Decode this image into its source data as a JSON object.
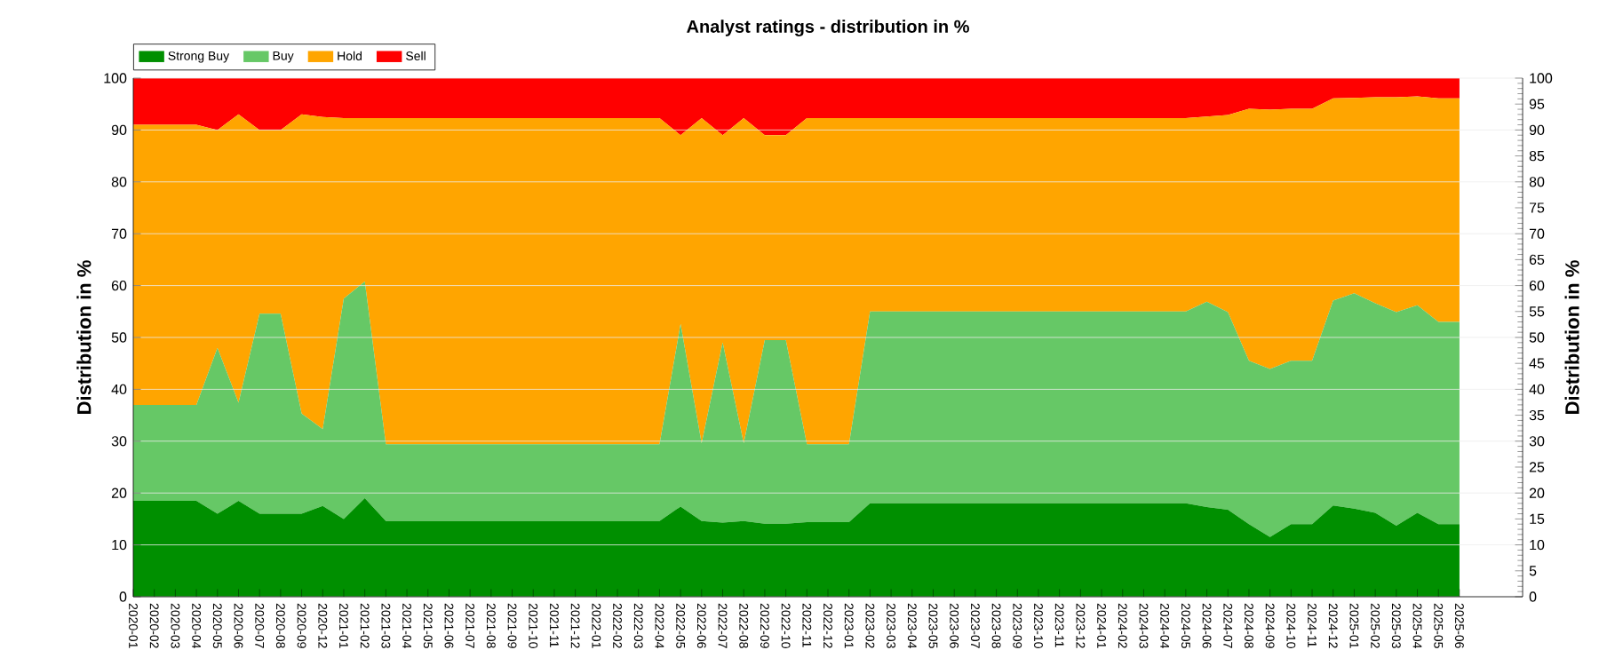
{
  "chart_data": {
    "type": "area",
    "title": "Analyst ratings - distribution in %",
    "ylabel": "Distribution in %",
    "y2label": "Distribution in %",
    "stacked": true,
    "grid": "y",
    "legend": "top left",
    "categories": [
      "2020-01",
      "2020-02",
      "2020-03",
      "2020-04",
      "2020-05",
      "2020-06",
      "2020-07",
      "2020-08",
      "2020-09",
      "2020-12",
      "2021-01",
      "2021-02",
      "2021-03",
      "2021-04",
      "2021-05",
      "2021-06",
      "2021-07",
      "2021-08",
      "2021-09",
      "2021-10",
      "2021-11",
      "2021-12",
      "2022-01",
      "2022-02",
      "2022-03",
      "2022-04",
      "2022-05",
      "2022-06",
      "2022-07",
      "2022-08",
      "2022-09",
      "2022-10",
      "2022-11",
      "2022-12",
      "2023-01",
      "2023-02",
      "2023-03",
      "2023-04",
      "2023-05",
      "2023-06",
      "2023-07",
      "2023-08",
      "2023-09",
      "2023-10",
      "2023-11",
      "2023-12",
      "2024-01",
      "2024-02",
      "2024-03",
      "2024-04",
      "2024-05",
      "2024-06",
      "2024-07",
      "2024-08",
      "2024-09",
      "2024-10",
      "2024-11",
      "2024-12",
      "2025-01",
      "2025-02",
      "2025-03",
      "2025-04",
      "2025-05",
      "2025-06"
    ],
    "series": [
      {
        "name": "Strong Buy",
        "color": "#008f00",
        "values": [
          18.5,
          18.5,
          18.5,
          18.5,
          16,
          18.5,
          16,
          16,
          16,
          17.5,
          15,
          19,
          14.6,
          14.6,
          14.6,
          14.6,
          14.6,
          14.6,
          14.6,
          14.6,
          14.6,
          14.6,
          14.6,
          14.6,
          14.6,
          14.6,
          17.4,
          14.6,
          14.3,
          14.6,
          14.1,
          14.1,
          14.4,
          14.4,
          14.4,
          18,
          18,
          18,
          18,
          18,
          18,
          18,
          18,
          18,
          18,
          18,
          18,
          18,
          18,
          18,
          18,
          17.3,
          16.8,
          14,
          11.5,
          14,
          14,
          17.6,
          17,
          16.2,
          13.7,
          16.2,
          14,
          14
        ]
      },
      {
        "name": "Buy",
        "color": "#66c866",
        "values": [
          18.5,
          18.5,
          18.5,
          18.5,
          32,
          18.9,
          38.6,
          38.6,
          19.3,
          14.8,
          42.5,
          41.8,
          14.8,
          14.8,
          14.8,
          14.8,
          14.8,
          14.8,
          14.8,
          14.8,
          14.8,
          14.8,
          14.8,
          14.8,
          14.8,
          14.8,
          35.2,
          15,
          34.7,
          15,
          35.4,
          35.4,
          15,
          15,
          15,
          37,
          37,
          37,
          37,
          37,
          37,
          37,
          37,
          37,
          37,
          37,
          37,
          37,
          37,
          37,
          37,
          39.6,
          38.1,
          31.5,
          32.4,
          31.5,
          31.5,
          39.5,
          41.5,
          40.4,
          41.2,
          40,
          39,
          39
        ]
      },
      {
        "name": "Hold",
        "color": "#ffa500",
        "values": [
          54,
          54,
          54,
          54,
          42,
          55.6,
          35.4,
          35.4,
          57.7,
          60.2,
          34.8,
          31.5,
          62.9,
          62.9,
          62.9,
          62.9,
          62.9,
          62.9,
          62.9,
          62.9,
          62.9,
          62.9,
          62.9,
          62.9,
          62.9,
          62.9,
          36.4,
          62.7,
          40,
          62.7,
          39.5,
          39.5,
          62.9,
          62.9,
          62.9,
          37.3,
          37.3,
          37.3,
          37.3,
          37.3,
          37.3,
          37.3,
          37.3,
          37.3,
          37.3,
          37.3,
          37.3,
          37.3,
          37.3,
          37.3,
          37.3,
          35.7,
          38,
          48.6,
          50,
          48.6,
          48.6,
          39,
          37.7,
          39.7,
          41.4,
          40.3,
          43.1,
          43.1
        ]
      },
      {
        "name": "Sell",
        "color": "#ff0000",
        "values": [
          9,
          9,
          9,
          9,
          10,
          7,
          10,
          10,
          7,
          7.5,
          7.7,
          7.7,
          7.7,
          7.7,
          7.7,
          7.7,
          7.7,
          7.7,
          7.7,
          7.7,
          7.7,
          7.7,
          7.7,
          7.7,
          7.7,
          7.7,
          11,
          7.7,
          11,
          7.7,
          11,
          11,
          7.7,
          7.7,
          7.7,
          7.7,
          7.7,
          7.7,
          7.7,
          7.7,
          7.7,
          7.7,
          7.7,
          7.7,
          7.7,
          7.7,
          7.7,
          7.7,
          7.7,
          7.7,
          7.7,
          7.4,
          7.1,
          5.9,
          6.1,
          5.9,
          5.9,
          3.9,
          3.8,
          3.7,
          3.7,
          3.5,
          3.9,
          3.9
        ]
      }
    ],
    "ylim": [
      0,
      100
    ],
    "yticks": [
      0,
      10,
      20,
      30,
      40,
      50,
      60,
      70,
      80,
      90,
      100
    ],
    "y2lim": [
      0,
      100
    ],
    "y2ticks": [
      0,
      5,
      10,
      15,
      20,
      25,
      30,
      35,
      40,
      45,
      50,
      55,
      60,
      65,
      70,
      75,
      80,
      85,
      90,
      95,
      100
    ]
  }
}
